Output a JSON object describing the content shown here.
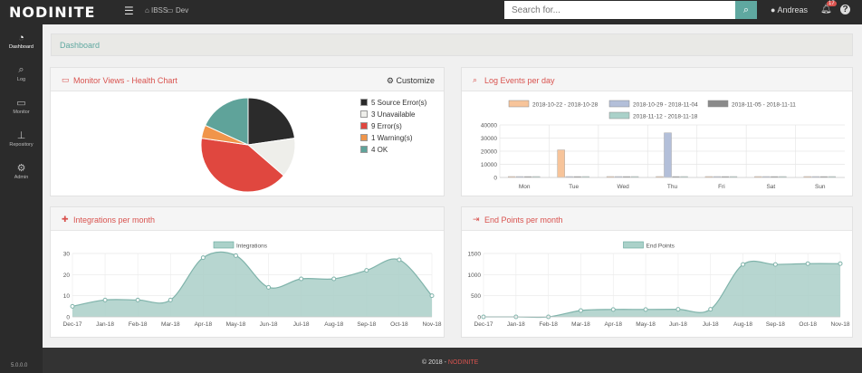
{
  "app": {
    "logo_text": "NODINITE",
    "crumb_env": "IBSS",
    "crumb_sub": "Dev",
    "search_placeholder": "Search for...",
    "user_name": "Andreas",
    "notification_count": "17",
    "version": "5.0.0.0",
    "footer_prefix": "© 2018 - ",
    "footer_brand": "NODINITE"
  },
  "sidebar": {
    "items": [
      {
        "label": "Dashboard",
        "icon": "gauge-icon",
        "active": true
      },
      {
        "label": "Log",
        "icon": "search-icon"
      },
      {
        "label": "Monitor",
        "icon": "monitor-icon"
      },
      {
        "label": "Repository",
        "icon": "sitemap-icon"
      },
      {
        "label": "Admin",
        "icon": "gears-icon"
      }
    ]
  },
  "page": {
    "breadcrumb": "Dashboard"
  },
  "panels": {
    "health": {
      "title": "Monitor Views - Health Chart",
      "action": "Customize"
    },
    "log": {
      "title": "Log Events per day"
    },
    "integrations": {
      "title": "Integrations per month"
    },
    "endpoints": {
      "title": "End Points per month"
    }
  },
  "chart_data": [
    {
      "type": "pie",
      "categories": [
        "5 Source Error(s)",
        "3 Unavailable",
        "9 Error(s)",
        "1 Warning(s)",
        "4 OK"
      ],
      "values": [
        5,
        3,
        9,
        1,
        4
      ],
      "colors": [
        "#2b2b2b",
        "#eeeeea",
        "#e0473f",
        "#f0954a",
        "#5fa39a"
      ],
      "legend": "right"
    },
    {
      "type": "bar",
      "categories": [
        "Mon",
        "Tue",
        "Wed",
        "Thu",
        "Fri",
        "Sat",
        "Sun"
      ],
      "series": [
        {
          "name": "2018-10-22 - 2018-10-28",
          "values": [
            0,
            21000,
            0,
            0,
            0,
            0,
            0
          ],
          "color": "#f7c49a"
        },
        {
          "name": "2018-10-29 - 2018-11-04",
          "values": [
            0,
            0,
            0,
            34000,
            0,
            0,
            0
          ],
          "color": "#b3bfd9"
        },
        {
          "name": "2018-11-05 - 2018-11-11",
          "values": [
            0,
            0,
            0,
            0,
            0,
            0,
            0
          ],
          "color": "#8a8a8a"
        },
        {
          "name": "2018-11-12 - 2018-11-18",
          "values": [
            0,
            0,
            0,
            0,
            0,
            0,
            0
          ],
          "color": "#aad1c9"
        }
      ],
      "yticks": [
        "0",
        "10000",
        "20000",
        "30000",
        "40000"
      ],
      "ylim": [
        0,
        40000
      ],
      "legend": "top",
      "grid": true
    },
    {
      "type": "area",
      "categories": [
        "Dec-17",
        "Jan-18",
        "Feb-18",
        "Mar-18",
        "Apr-18",
        "May-18",
        "Jun-18",
        "Jul-18",
        "Aug-18",
        "Sep-18",
        "Oct-18",
        "Nov-18"
      ],
      "series": [
        {
          "name": "Integrations",
          "values": [
            5,
            8,
            8,
            8,
            28,
            29,
            14,
            18,
            18,
            22,
            27,
            10
          ]
        }
      ],
      "yticks": [
        "0",
        "10",
        "20",
        "30"
      ],
      "ylim": [
        0,
        30
      ],
      "legend": "top",
      "grid": true
    },
    {
      "type": "area",
      "categories": [
        "Dec-17",
        "Jan-18",
        "Feb-18",
        "Mar-18",
        "Apr-18",
        "May-18",
        "Jun-18",
        "Jul-18",
        "Aug-18",
        "Sep-18",
        "Oct-18",
        "Nov-18"
      ],
      "series": [
        {
          "name": "End Points",
          "values": [
            0,
            0,
            0,
            150,
            175,
            175,
            180,
            180,
            1240,
            1240,
            1260,
            1260
          ]
        }
      ],
      "yticks": [
        "0",
        "500",
        "1000",
        "1500"
      ],
      "ylim": [
        0,
        1500
      ],
      "legend": "top",
      "grid": true
    }
  ]
}
